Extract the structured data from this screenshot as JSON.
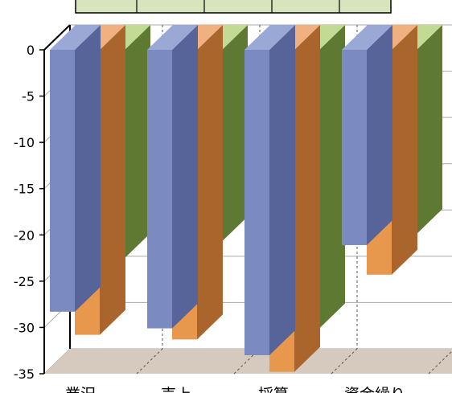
{
  "chart_data": {
    "type": "bar",
    "categories": [
      "業況",
      "売上",
      "採算",
      "資金繰り"
    ],
    "series": [
      {
        "values": [
          -28.3,
          -30.1,
          -33.0,
          -21.1
        ]
      },
      {
        "values": [
          -30.8,
          -31.3,
          -34.8,
          -24.3
        ]
      },
      {
        "values": [
          -22.5,
          -20.7,
          -30.1,
          -19.9
        ]
      }
    ],
    "ylim": [
      -35,
      0
    ],
    "yticks": [
      0,
      -5,
      -10,
      -15,
      -20,
      -25,
      -30,
      -35
    ],
    "ytick_labels": [
      "0",
      "-5",
      "-10",
      "-15",
      "-20",
      "-25",
      "-30",
      "-35"
    ],
    "grid": true,
    "three_d": true,
    "colors": {
      "series": [
        "#7b8bc2",
        "#e8984d",
        "#9bbb59"
      ],
      "series_side": [
        "#56649a",
        "#a9652c",
        "#5e7a32"
      ],
      "series_top": [
        "#9aa8d6",
        "#f0b080",
        "#c3da95"
      ],
      "floor": "#d6c9be",
      "axis": "#000000",
      "grid": "#aaaaaa",
      "header_bg": "#d7e4bc"
    },
    "header_row": [
      "",
      "",
      "",
      "",
      ""
    ]
  }
}
